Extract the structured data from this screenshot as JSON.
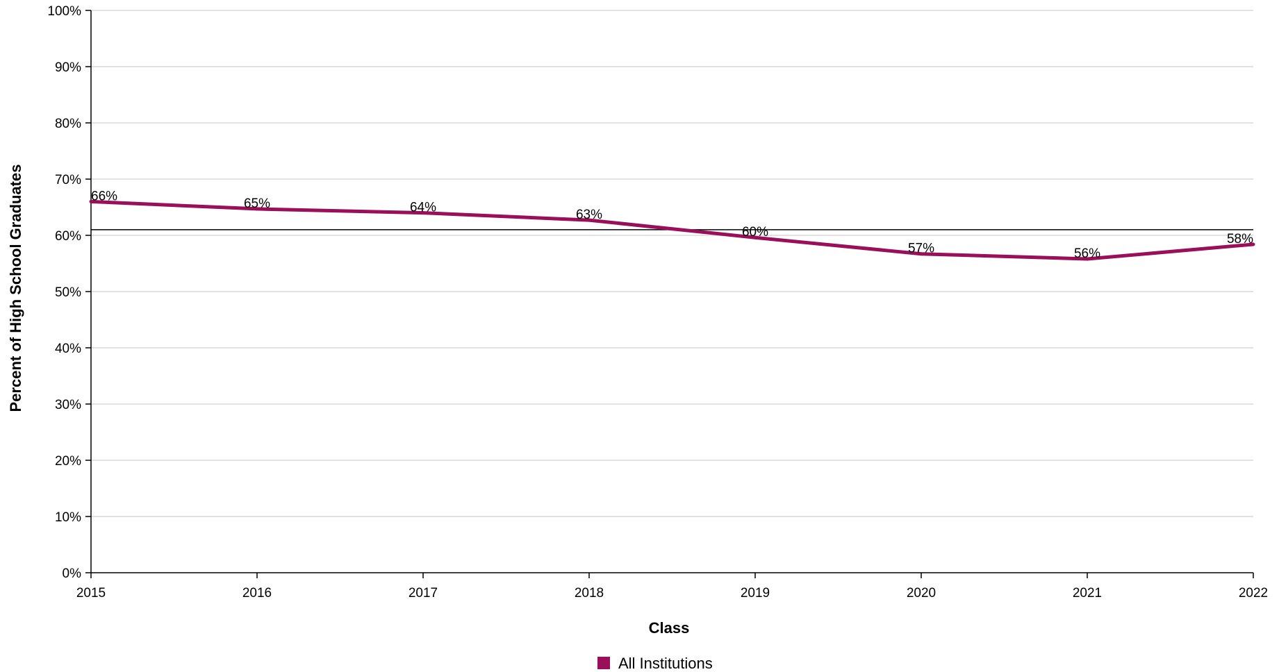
{
  "chart_data": {
    "type": "line",
    "title": "",
    "xlabel": "Class",
    "ylabel": "Percent of High School Graduates",
    "x": [
      "2015",
      "2016",
      "2017",
      "2018",
      "2019",
      "2020",
      "2021",
      "2022"
    ],
    "series": [
      {
        "name": "All Institutions",
        "color": "#990f5a",
        "values": [
          66,
          64.7,
          64,
          62.7,
          59.6,
          56.7,
          55.8,
          58.4
        ],
        "labels": [
          "66%",
          "65%",
          "64%",
          "63%",
          "60%",
          "57%",
          "56%",
          "58%"
        ]
      }
    ],
    "ylim": [
      0,
      100
    ],
    "yticks": [
      0,
      10,
      20,
      30,
      40,
      50,
      60,
      70,
      80,
      90,
      100
    ],
    "ytick_labels": [
      "0%",
      "10%",
      "20%",
      "30%",
      "40%",
      "50%",
      "60%",
      "70%",
      "80%",
      "90%",
      "100%"
    ],
    "reference_line": 61,
    "grid": true,
    "legend_position": "bottom-center"
  }
}
